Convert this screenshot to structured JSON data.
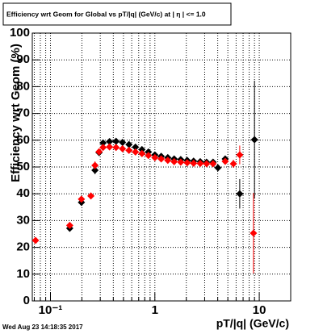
{
  "chart_data": {
    "type": "scatter",
    "title": "Efficiency wrt Geom for Global vs pT/|q| (GeV/c) at | η | <= 1.0",
    "x_label": "pT/|q| (GeV/c)",
    "y_label": "Efficiency wrt Geom (%)",
    "footer": "Wed Aug 23 14:18:35 2017",
    "xscale": "log",
    "grid": true,
    "xlim": [
      0.067,
      20
    ],
    "ylim": [
      0,
      100
    ],
    "xticks": [
      {
        "value": 0.1,
        "label": "10⁻¹"
      },
      1,
      10
    ],
    "xminorticks": [
      0.07,
      0.08,
      0.09,
      0.2,
      0.3,
      0.4,
      0.5,
      0.6,
      0.7,
      0.8,
      0.9,
      2,
      3,
      4,
      5,
      6,
      7,
      8,
      9,
      20
    ],
    "yticks": [
      0,
      10,
      20,
      30,
      40,
      50,
      60,
      70,
      80,
      90,
      100
    ],
    "series": [
      {
        "color": "#000000",
        "x": [
          0.153,
          0.198,
          0.267,
          0.292,
          0.319,
          0.368,
          0.425,
          0.49,
          0.565,
          0.652,
          0.752,
          0.867,
          1.0,
          1.15,
          1.33,
          1.53,
          1.77,
          2.04,
          2.35,
          2.72,
          3.13,
          3.61,
          4.02,
          4.72,
          6.5,
          9.0
        ],
        "values": [
          27.1,
          36.8,
          48.8,
          55.4,
          59.0,
          59.5,
          59.6,
          59.2,
          58.4,
          57.4,
          56.5,
          55.6,
          54.5,
          54.0,
          53.5,
          53.0,
          52.8,
          52.5,
          52.2,
          52.0,
          51.8,
          51.8,
          49.7,
          53.0,
          40.0,
          60.2
        ],
        "errors": [
          1.2,
          1.0,
          1.5,
          1.0,
          0.5,
          0.5,
          0.5,
          0.5,
          0.5,
          0.5,
          0.5,
          0.5,
          0.5,
          0.5,
          0.5,
          0.5,
          0.5,
          0.5,
          0.5,
          0.5,
          0.5,
          0.5,
          1.0,
          1.0,
          5.5,
          22
        ]
      },
      {
        "color": "#ff0000",
        "x": [
          0.072,
          0.153,
          0.198,
          0.244,
          0.267,
          0.292,
          0.319,
          0.368,
          0.425,
          0.49,
          0.565,
          0.652,
          0.752,
          0.867,
          1.0,
          1.15,
          1.33,
          1.53,
          1.77,
          2.04,
          2.35,
          2.72,
          3.13,
          3.61,
          4.72,
          5.65,
          6.5,
          8.8
        ],
        "values": [
          22.6,
          28.2,
          38.0,
          39.2,
          50.6,
          55.7,
          57.3,
          57.5,
          57.3,
          56.8,
          56.2,
          55.6,
          55.0,
          54.3,
          53.5,
          53.0,
          52.5,
          52.0,
          51.8,
          51.6,
          51.4,
          51.3,
          51.2,
          51.2,
          52.1,
          51.2,
          54.5,
          25.3
        ],
        "errors": [
          1.0,
          1.0,
          1.0,
          1.0,
          1.5,
          1.0,
          0.5,
          0.5,
          0.5,
          0.5,
          0.5,
          0.5,
          0.5,
          0.5,
          0.5,
          0.5,
          0.5,
          0.5,
          0.5,
          0.5,
          0.5,
          0.5,
          0.5,
          0.5,
          1.0,
          1.5,
          3.5,
          15
        ]
      }
    ]
  }
}
